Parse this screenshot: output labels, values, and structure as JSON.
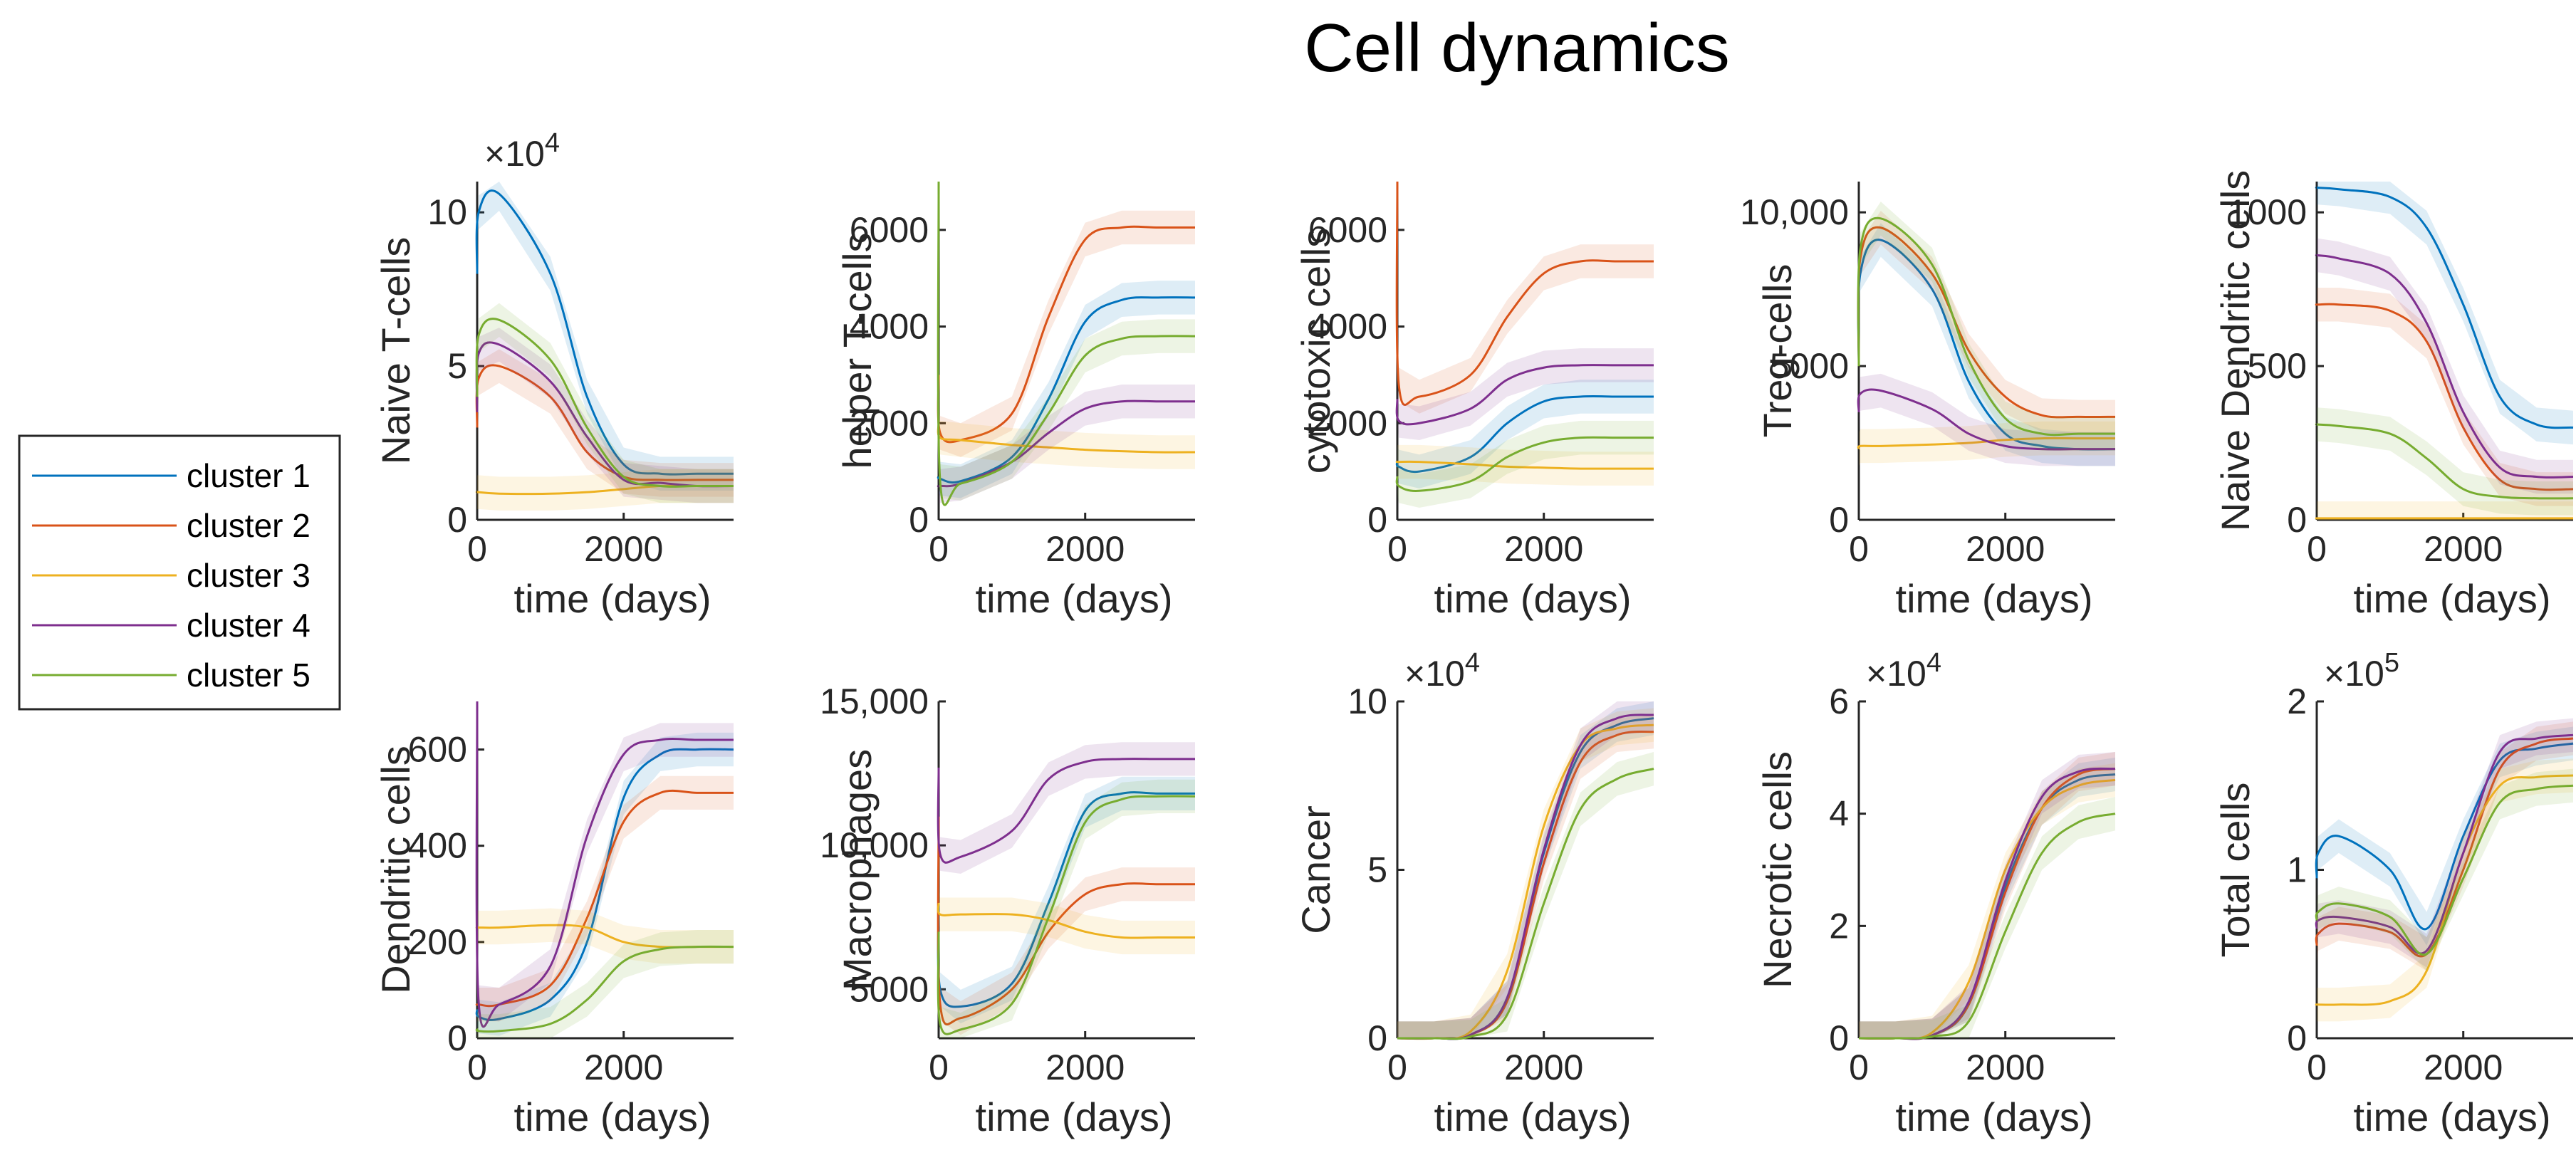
{
  "title": "Cell dynamics",
  "colors": {
    "cluster 1": "#0072BD",
    "cluster 2": "#D95319",
    "cluster 3": "#EDB120",
    "cluster 4": "#7E2F8E",
    "cluster 5": "#77AC30"
  },
  "legend": [
    "cluster 1",
    "cluster 2",
    "cluster 3",
    "cluster 4",
    "cluster 5"
  ],
  "chart_data": [
    {
      "type": "line",
      "ylabel": "Naive T-cells",
      "xlabel": "time (days)",
      "xlim": [
        0,
        3500
      ],
      "ylim": [
        0,
        110000
      ],
      "yticks": [
        0,
        50000,
        100000
      ],
      "ytick_labels": [
        "0",
        "5",
        "10"
      ],
      "exponent": "×10^4",
      "x": [
        0,
        20,
        300,
        1000,
        1500,
        2000,
        2500,
        3000,
        3500
      ],
      "series": [
        {
          "name": "cluster 1",
          "values": [
            80000,
            100000,
            106000,
            80000,
            40000,
            18000,
            15000,
            15000,
            15000
          ]
        },
        {
          "name": "cluster 2",
          "values": [
            30000,
            46000,
            50000,
            40000,
            22000,
            14000,
            13000,
            13000,
            13000
          ]
        },
        {
          "name": "cluster 3",
          "values": [
            9000,
            9000,
            8500,
            8500,
            9000,
            10000,
            11000,
            11000,
            11000
          ]
        },
        {
          "name": "cluster 4",
          "values": [
            35000,
            54000,
            57000,
            45000,
            27000,
            13000,
            12000,
            11000,
            11000
          ]
        },
        {
          "name": "cluster 5",
          "values": [
            40000,
            60000,
            65000,
            52000,
            30000,
            14000,
            11000,
            11000,
            11000
          ]
        }
      ]
    },
    {
      "type": "line",
      "ylabel": "helper T-cells",
      "xlabel": "time (days)",
      "xlim": [
        0,
        3500
      ],
      "ylim": [
        0,
        7000
      ],
      "yticks": [
        0,
        2000,
        4000,
        6000
      ],
      "ytick_labels": [
        "0",
        "2000",
        "4000",
        "6000"
      ],
      "exponent": "",
      "x": [
        0,
        20,
        300,
        1000,
        1500,
        2000,
        2500,
        3000,
        3500
      ],
      "series": [
        {
          "name": "cluster 1",
          "values": [
            900,
            850,
            800,
            1300,
            2500,
            4100,
            4550,
            4600,
            4600
          ]
        },
        {
          "name": "cluster 2",
          "values": [
            3000,
            1800,
            1650,
            2200,
            4200,
            5800,
            6050,
            6050,
            6050
          ]
        },
        {
          "name": "cluster 3",
          "values": [
            2000,
            1700,
            1650,
            1550,
            1500,
            1450,
            1420,
            1400,
            1400
          ]
        },
        {
          "name": "cluster 4",
          "values": [
            700,
            700,
            750,
            1200,
            1800,
            2300,
            2450,
            2450,
            2450
          ]
        },
        {
          "name": "cluster 5",
          "values": [
            7000,
            800,
            750,
            1200,
            2200,
            3400,
            3750,
            3800,
            3800
          ]
        }
      ]
    },
    {
      "type": "line",
      "ylabel": "cytotoxic cells",
      "xlabel": "time (days)",
      "xlim": [
        0,
        3500
      ],
      "ylim": [
        0,
        7000
      ],
      "yticks": [
        0,
        2000,
        4000,
        6000
      ],
      "ytick_labels": [
        "0",
        "2000",
        "4000",
        "6000"
      ],
      "exponent": "",
      "x": [
        0,
        20,
        300,
        1000,
        1500,
        2000,
        2500,
        3000,
        3500
      ],
      "series": [
        {
          "name": "cluster 1",
          "values": [
            1200,
            1100,
            1000,
            1300,
            2000,
            2450,
            2550,
            2550,
            2550
          ]
        },
        {
          "name": "cluster 2",
          "values": [
            7000,
            2800,
            2550,
            3000,
            4200,
            5100,
            5350,
            5350,
            5350
          ]
        },
        {
          "name": "cluster 3",
          "values": [
            1200,
            1200,
            1200,
            1150,
            1100,
            1080,
            1060,
            1060,
            1060
          ]
        },
        {
          "name": "cluster 4",
          "values": [
            2500,
            2050,
            2000,
            2300,
            2900,
            3150,
            3200,
            3200,
            3200
          ]
        },
        {
          "name": "cluster 5",
          "values": [
            900,
            700,
            600,
            800,
            1300,
            1600,
            1700,
            1700,
            1700
          ]
        }
      ]
    },
    {
      "type": "line",
      "ylabel": "Treg-cells",
      "xlabel": "time (days)",
      "xlim": [
        0,
        3500
      ],
      "ylim": [
        0,
        11000
      ],
      "yticks": [
        0,
        5000,
        10000
      ],
      "ytick_labels": [
        "0",
        "5000",
        "10,000"
      ],
      "exponent": "",
      "x": [
        0,
        20,
        300,
        1000,
        1500,
        2000,
        2500,
        3000,
        3500
      ],
      "series": [
        {
          "name": "cluster 1",
          "values": [
            5000,
            8000,
            9100,
            7500,
            4500,
            2800,
            2400,
            2300,
            2300
          ]
        },
        {
          "name": "cluster 2",
          "values": [
            5000,
            8500,
            9500,
            8000,
            5500,
            4000,
            3400,
            3350,
            3350
          ]
        },
        {
          "name": "cluster 3",
          "values": [
            2300,
            2400,
            2400,
            2450,
            2500,
            2600,
            2650,
            2650,
            2650
          ]
        },
        {
          "name": "cluster 4",
          "values": [
            3500,
            4100,
            4200,
            3600,
            2800,
            2400,
            2300,
            2300,
            2300
          ]
        },
        {
          "name": "cluster 5",
          "values": [
            5000,
            8800,
            9800,
            8300,
            5200,
            3300,
            2800,
            2800,
            2800
          ]
        }
      ]
    },
    {
      "type": "line",
      "ylabel": "Naive Dendritic cells",
      "xlabel": "time (days)",
      "xlim": [
        0,
        3500
      ],
      "ylim": [
        0,
        1100
      ],
      "yticks": [
        0,
        500,
        1000
      ],
      "ytick_labels": [
        "0",
        "500",
        "1000"
      ],
      "exponent": "",
      "x": [
        0,
        20,
        300,
        1000,
        1500,
        2000,
        2500,
        3000,
        3500
      ],
      "series": [
        {
          "name": "cluster 1",
          "values": [
            1080,
            1080,
            1075,
            1050,
            950,
            700,
            400,
            310,
            300
          ]
        },
        {
          "name": "cluster 2",
          "values": [
            700,
            700,
            700,
            680,
            580,
            300,
            130,
            100,
            100
          ]
        },
        {
          "name": "cluster 3",
          "values": [
            5,
            5,
            5,
            5,
            5,
            5,
            5,
            5,
            5
          ]
        },
        {
          "name": "cluster 4",
          "values": [
            860,
            860,
            850,
            800,
            640,
            350,
            170,
            140,
            140
          ]
        },
        {
          "name": "cluster 5",
          "values": [
            310,
            310,
            305,
            280,
            200,
            100,
            75,
            70,
            70
          ]
        }
      ]
    },
    {
      "type": "line",
      "ylabel": "Dendritic cells",
      "xlabel": "time (days)",
      "xlim": [
        0,
        3500
      ],
      "ylim": [
        0,
        700
      ],
      "yticks": [
        0,
        200,
        400,
        600
      ],
      "ytick_labels": [
        "0",
        "200",
        "400",
        "600"
      ],
      "exponent": "",
      "x": [
        0,
        20,
        300,
        1000,
        1500,
        2000,
        2500,
        3000,
        3500
      ],
      "series": [
        {
          "name": "cluster 1",
          "values": [
            60,
            45,
            40,
            80,
            200,
            500,
            590,
            600,
            600
          ]
        },
        {
          "name": "cluster 2",
          "values": [
            70,
            70,
            70,
            110,
            250,
            450,
            510,
            510,
            510
          ]
        },
        {
          "name": "cluster 3",
          "values": [
            230,
            230,
            230,
            235,
            230,
            200,
            190,
            190,
            190
          ]
        },
        {
          "name": "cluster 4",
          "values": [
            700,
            75,
            70,
            150,
            420,
            590,
            620,
            620,
            620
          ]
        },
        {
          "name": "cluster 5",
          "values": [
            20,
            15,
            15,
            30,
            80,
            160,
            185,
            190,
            190
          ]
        }
      ]
    },
    {
      "type": "line",
      "ylabel": "Macrophages",
      "xlabel": "time (days)",
      "xlim": [
        0,
        3500
      ],
      "ylim": [
        3300,
        15000
      ],
      "yticks": [
        5000,
        10000,
        15000
      ],
      "ytick_labels": [
        "5000",
        "10,000",
        "15,000"
      ],
      "exponent": "",
      "x": [
        0,
        20,
        300,
        1000,
        1500,
        2000,
        2500,
        3000,
        3500
      ],
      "series": [
        {
          "name": "cluster 1",
          "values": [
            8000,
            5000,
            4400,
            5200,
            8000,
            11200,
            11800,
            11800,
            11800
          ]
        },
        {
          "name": "cluster 2",
          "values": [
            11000,
            4500,
            4000,
            5000,
            7000,
            8300,
            8650,
            8650,
            8650
          ]
        },
        {
          "name": "cluster 3",
          "values": [
            8000,
            7600,
            7600,
            7600,
            7400,
            7000,
            6800,
            6800,
            6800
          ]
        },
        {
          "name": "cluster 4",
          "values": [
            12700,
            9700,
            9600,
            10500,
            12300,
            12900,
            13000,
            13000,
            13000
          ]
        },
        {
          "name": "cluster 5",
          "values": [
            7000,
            3800,
            3600,
            4500,
            7500,
            10800,
            11600,
            11700,
            11700
          ]
        }
      ]
    },
    {
      "type": "line",
      "ylabel": "Cancer",
      "xlabel": "time (days)",
      "xlim": [
        0,
        3500
      ],
      "ylim": [
        0,
        100000
      ],
      "yticks": [
        0,
        50000,
        100000
      ],
      "ytick_labels": [
        "0",
        "5",
        "10"
      ],
      "exponent": "×10^4",
      "x": [
        0,
        500,
        1000,
        1500,
        2000,
        2500,
        3000,
        3500
      ],
      "series": [
        {
          "name": "cluster 1",
          "values": [
            0,
            0,
            1000,
            12000,
            55000,
            85000,
            93000,
            95000
          ]
        },
        {
          "name": "cluster 2",
          "values": [
            0,
            0,
            1000,
            11000,
            52000,
            82000,
            90000,
            91000
          ]
        },
        {
          "name": "cluster 3",
          "values": [
            0,
            0,
            2000,
            20000,
            63000,
            87000,
            92000,
            93000
          ]
        },
        {
          "name": "cluster 4",
          "values": [
            0,
            0,
            1000,
            12000,
            56000,
            87000,
            95000,
            96000
          ]
        },
        {
          "name": "cluster 5",
          "values": [
            0,
            0,
            500,
            7000,
            40000,
            68000,
            77000,
            80000
          ]
        }
      ]
    },
    {
      "type": "line",
      "ylabel": "Necrotic cells",
      "xlabel": "time (days)",
      "xlim": [
        0,
        3500
      ],
      "ylim": [
        0,
        60000
      ],
      "yticks": [
        0,
        20000,
        40000,
        60000
      ],
      "ytick_labels": [
        "0",
        "2",
        "4",
        "6"
      ],
      "exponent": "×10^4",
      "x": [
        0,
        500,
        1000,
        1500,
        2000,
        2500,
        3000,
        3500
      ],
      "series": [
        {
          "name": "cluster 1",
          "values": [
            0,
            0,
            500,
            6000,
            27000,
            41000,
            46000,
            47000
          ]
        },
        {
          "name": "cluster 2",
          "values": [
            0,
            0,
            500,
            6000,
            26000,
            41000,
            47000,
            48000
          ]
        },
        {
          "name": "cluster 3",
          "values": [
            0,
            0,
            1000,
            10000,
            30000,
            41000,
            45000,
            46000
          ]
        },
        {
          "name": "cluster 4",
          "values": [
            0,
            0,
            500,
            6500,
            28000,
            43000,
            47500,
            48000
          ]
        },
        {
          "name": "cluster 5",
          "values": [
            0,
            0,
            300,
            3000,
            19000,
            33000,
            38500,
            40000
          ]
        }
      ]
    },
    {
      "type": "line",
      "ylabel": "Total cells",
      "xlabel": "time (days)",
      "xlim": [
        0,
        3500
      ],
      "ylim": [
        0,
        200000
      ],
      "yticks": [
        0,
        100000,
        200000
      ],
      "ytick_labels": [
        "0",
        "1",
        "2"
      ],
      "exponent": "×10^5",
      "x": [
        0,
        20,
        300,
        1000,
        1500,
        2000,
        2500,
        3000,
        3500
      ],
      "series": [
        {
          "name": "cluster 1",
          "values": [
            95000,
            110000,
            120000,
            100000,
            65000,
            120000,
            165000,
            172000,
            175000
          ]
        },
        {
          "name": "cluster 2",
          "values": [
            55000,
            62000,
            68000,
            63000,
            50000,
            100000,
            160000,
            175000,
            178000
          ]
        },
        {
          "name": "cluster 3",
          "values": [
            20000,
            20000,
            20000,
            22000,
            40000,
            110000,
            150000,
            155000,
            156000
          ]
        },
        {
          "name": "cluster 4",
          "values": [
            65000,
            70000,
            72000,
            66000,
            52000,
            110000,
            170000,
            178000,
            180000
          ]
        },
        {
          "name": "cluster 5",
          "values": [
            70000,
            75000,
            80000,
            72000,
            50000,
            95000,
            140000,
            148000,
            150000
          ]
        }
      ]
    }
  ]
}
